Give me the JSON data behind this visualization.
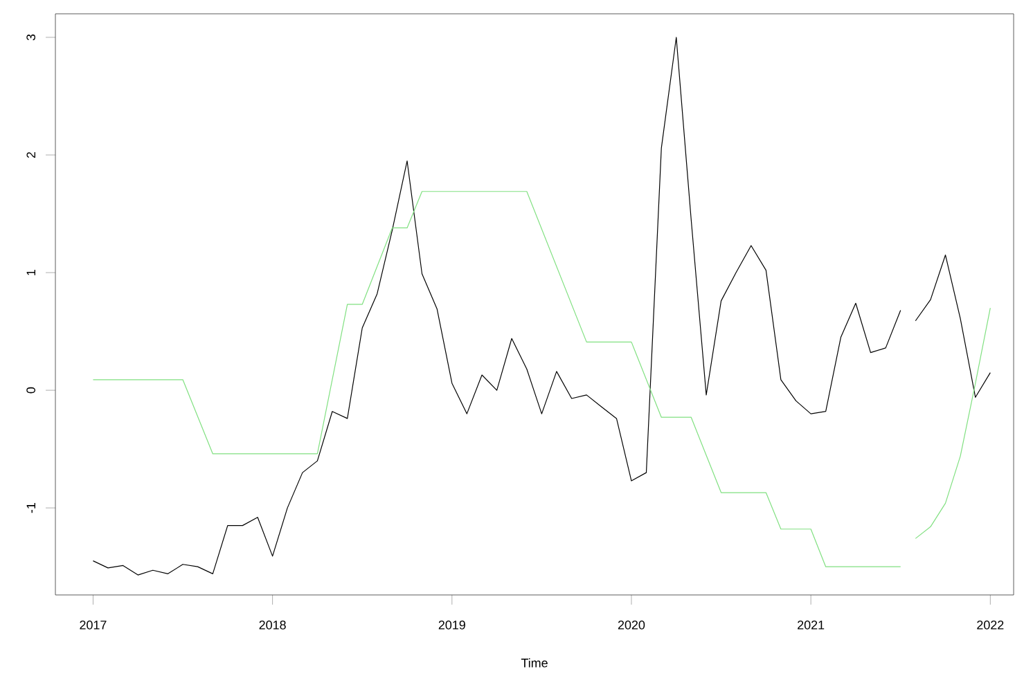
{
  "chart_data": {
    "type": "line",
    "xlabel": "Time",
    "xlim": [
      2016.79,
      2022.13
    ],
    "xticks": [
      2017,
      2018,
      2019,
      2020,
      2021,
      2022
    ],
    "ylim": [
      -1.74,
      3.2
    ],
    "yticks": [
      -1,
      0,
      1,
      2,
      3
    ],
    "grid": false,
    "marker": "none",
    "line_style": "solid",
    "series": [
      {
        "color": "#000000",
        "x": [
          2017,
          2017.083,
          2017.167,
          2017.25,
          2017.333,
          2017.417,
          2017.5,
          2017.583,
          2017.667,
          2017.75,
          2017.833,
          2017.917,
          2018,
          2018.083,
          2018.167,
          2018.25,
          2018.333,
          2018.417,
          2018.5,
          2018.583,
          2018.667,
          2018.75,
          2018.833,
          2018.917,
          2019,
          2019.083,
          2019.167,
          2019.25,
          2019.333,
          2019.417,
          2019.5,
          2019.583,
          2019.667,
          2019.75,
          2019.833,
          2019.917,
          2020,
          2020.083,
          2020.167,
          2020.25,
          2020.333,
          2020.417,
          2020.5,
          2020.583,
          2020.667,
          2020.75,
          2020.833,
          2020.917,
          2021,
          2021.083,
          2021.167,
          2021.25,
          2021.333,
          2021.417,
          2021.5
        ],
        "values": [
          -1.45,
          -1.51,
          -1.49,
          -1.57,
          -1.53,
          -1.56,
          -1.48,
          -1.5,
          -1.56,
          -1.15,
          -1.15,
          -1.08,
          -1.41,
          -1.0,
          -0.7,
          -0.6,
          -0.18,
          -0.24,
          0.53,
          0.82,
          1.36,
          1.95,
          0.99,
          0.69,
          0.06,
          -0.2,
          0.13,
          0.0,
          0.44,
          0.18,
          -0.2,
          0.16,
          -0.07,
          -0.04,
          -0.14,
          -0.24,
          -0.77,
          -0.7,
          2.06,
          3.0,
          1.45,
          -0.04,
          0.76,
          1.0,
          1.23,
          1.02,
          0.09,
          -0.09,
          -0.2,
          -0.18,
          0.45,
          0.74,
          0.32,
          0.36,
          0.68
        ]
      },
      {
        "color": "#000000",
        "x": [
          2021.583,
          2021.667,
          2021.75,
          2021.833,
          2021.917,
          2022
        ],
        "values": [
          0.59,
          0.77,
          1.15,
          0.61,
          -0.06,
          0.15
        ]
      },
      {
        "color": "#80e080",
        "x": [
          2017,
          2017.5,
          2017.667,
          2018.25,
          2018.417,
          2018.5,
          2018.667,
          2018.75,
          2018.833,
          2019.417,
          2019.75,
          2020,
          2020.167,
          2020.333,
          2020.5,
          2020.75,
          2020.833,
          2021,
          2021.083,
          2021.5
        ],
        "values": [
          0.09,
          0.09,
          -0.54,
          -0.54,
          0.73,
          0.73,
          1.38,
          1.38,
          1.69,
          1.69,
          0.41,
          0.41,
          -0.23,
          -0.23,
          -0.87,
          -0.87,
          -1.18,
          -1.18,
          -1.5,
          -1.5
        ]
      },
      {
        "color": "#80e080",
        "x": [
          2021.583,
          2021.667,
          2021.75,
          2021.833,
          2021.917,
          2022
        ],
        "values": [
          -1.26,
          -1.16,
          -0.96,
          -0.56,
          0.06,
          0.7
        ]
      }
    ]
  }
}
